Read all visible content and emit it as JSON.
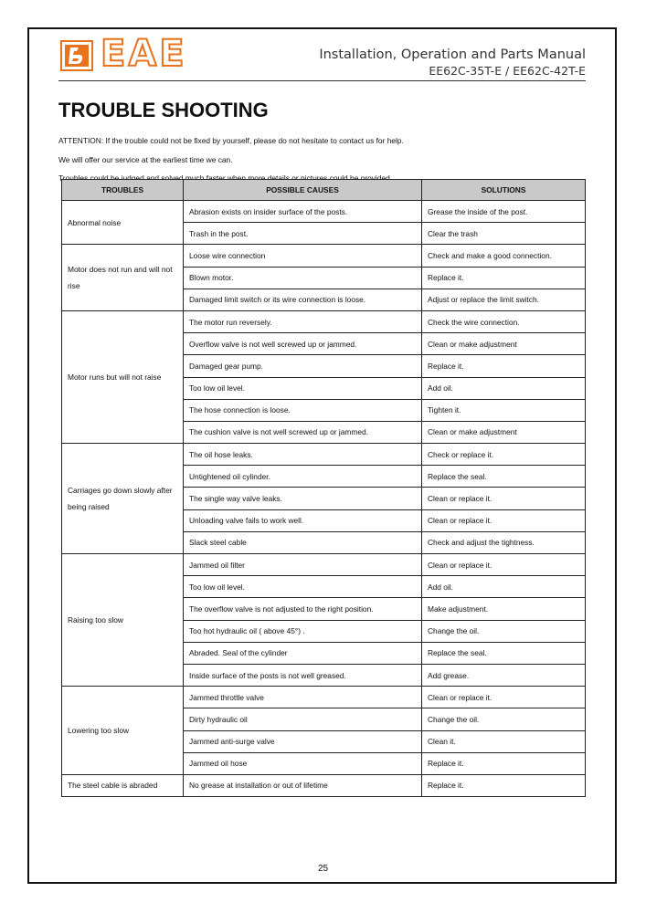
{
  "header": {
    "logo": "EAE",
    "manual_title": "Installation, Operation and Parts Manual",
    "models": "EE62C-35T-E / EE62C-42T-E"
  },
  "title": "TROUBLE SHOOTING",
  "intro": [
    "ATTENTION: If the trouble could not be fixed by yourself, please do not hesitate to contact us for help.",
    "We will offer our service at the earliest time we can.",
    "Troubles could be judged and solved much faster when more details or pictures could be provided."
  ],
  "table": {
    "columns": [
      "TROUBLES",
      "POSSIBLE CAUSES",
      "SOLUTIONS"
    ],
    "groups": [
      {
        "trouble": "Abnormal noise",
        "rows": [
          [
            "Abrasion exists on insider surface of the posts.",
            "Grease the inside of the post."
          ],
          [
            "Trash in the post.",
            "Clear the trash"
          ]
        ]
      },
      {
        "trouble": "Motor does not run and will not rise",
        "rows": [
          [
            "Loose wire connection",
            "Check and make a good connection."
          ],
          [
            "Blown motor.",
            "Replace it."
          ],
          [
            "Damaged limit switch or its wire connection is loose.",
            "Adjust or replace the limit switch."
          ]
        ]
      },
      {
        "trouble": "Motor runs but will not raise",
        "rows": [
          [
            "The motor run reversely.",
            "Check the wire connection."
          ],
          [
            "Overflow valve is not well screwed up or jammed.",
            "Clean or make adjustment"
          ],
          [
            "Damaged gear pump.",
            "Replace it."
          ],
          [
            "Too low oil level.",
            "Add oil."
          ],
          [
            "The hose connection is loose.",
            "Tighten it."
          ],
          [
            "The cushion valve is not well screwed up or jammed.",
            "Clean or make adjustment"
          ]
        ]
      },
      {
        "trouble": "Carriages go down slowly after being raised",
        "rows": [
          [
            "The oil hose leaks.",
            "Check or replace it."
          ],
          [
            "Untightened oil cylinder.",
            "Replace the seal."
          ],
          [
            "The single way valve leaks.",
            "Clean or replace it."
          ],
          [
            "Unloading valve fails to work well.",
            "Clean or replace it."
          ],
          [
            "Slack steel cable",
            "Check and adjust the tightness."
          ]
        ]
      },
      {
        "trouble": "Raising too slow",
        "rows": [
          [
            "Jammed oil filter",
            "Clean or replace it."
          ],
          [
            "Too low oil level.",
            "Add oil."
          ],
          [
            "The overflow valve is not adjusted to the right position.",
            "Make adjustment."
          ],
          [
            "Too hot hydraulic oil ( above 45°) .",
            "Change the oil."
          ],
          [
            "Abraded. Seal of the cylinder",
            "Replace the seal."
          ],
          [
            "Inside surface of the posts is not well greased.",
            "Add grease."
          ]
        ]
      },
      {
        "trouble": "Lowering too slow",
        "rows": [
          [
            "Jammed throttle valve",
            "Clean or replace it."
          ],
          [
            "Dirty hydraulic oil",
            "Change the oil."
          ],
          [
            "Jammed anti-surge valve",
            "Clean it."
          ],
          [
            "Jammed oil hose",
            "Replace it."
          ]
        ]
      },
      {
        "trouble": "The steel cable is abraded",
        "rows": [
          [
            "No grease at installation or out of lifetime",
            "Replace it."
          ]
        ]
      }
    ]
  },
  "page_number": "25"
}
